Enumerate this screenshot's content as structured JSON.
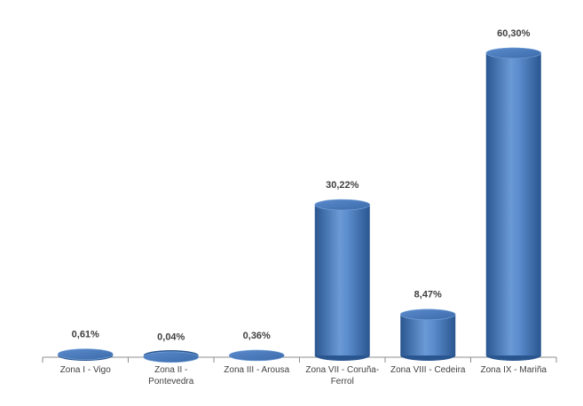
{
  "chart_data": {
    "type": "bar",
    "categories": [
      "Zona I - Vigo",
      "Zona II - Pontevedra",
      "Zona III - Arousa",
      "Zona VII - Coruña-Ferrol",
      "Zona VIII - Cedeira",
      "Zona IX - Mariña"
    ],
    "values": [
      0.61,
      0.04,
      0.36,
      30.22,
      8.47,
      60.3
    ],
    "value_labels": [
      "0,61%",
      "0,04%",
      "0,36%",
      "30,22%",
      "8,47%",
      "60,30%"
    ],
    "color": "#4a7ebb"
  }
}
